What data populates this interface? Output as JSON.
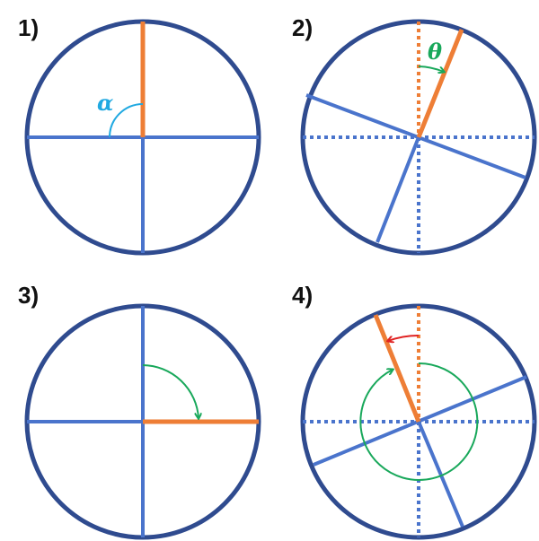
{
  "colors": {
    "circle": "#2f4b8f",
    "axis": "#4a74cc",
    "highlight": "#ee7e36",
    "alpha": "#21a9e1",
    "theta": "#19a85b",
    "reverse": "#e02222"
  },
  "panels": [
    {
      "label": "1)",
      "annotation": "α"
    },
    {
      "label": "2)",
      "annotation": "θ"
    },
    {
      "label": "3)"
    },
    {
      "label": "4)"
    }
  ]
}
